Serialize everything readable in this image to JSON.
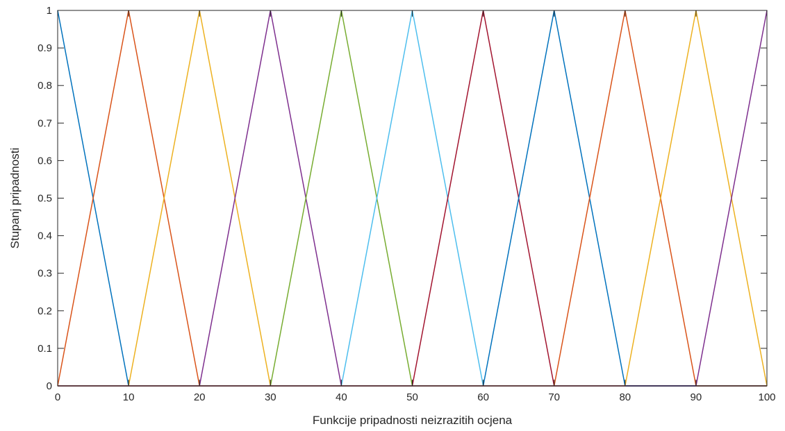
{
  "chart_data": {
    "type": "line",
    "title": "",
    "xlabel": "Funkcije pripadnosti neizrazitih ocjena",
    "ylabel": "Stupanj pripadnosti",
    "xlim": [
      0,
      100
    ],
    "ylim": [
      0,
      1
    ],
    "xticks": [
      0,
      10,
      20,
      30,
      40,
      50,
      60,
      70,
      80,
      90,
      100
    ],
    "yticks": [
      0,
      0.1,
      0.2,
      0.3,
      0.4,
      0.5,
      0.6,
      0.7,
      0.8,
      0.9,
      1
    ],
    "xtick_labels": [
      "0",
      "10",
      "20",
      "30",
      "40",
      "50",
      "60",
      "70",
      "80",
      "90",
      "100"
    ],
    "ytick_labels": [
      "0",
      "0.1",
      "0.2",
      "0.3",
      "0.4",
      "0.5",
      "0.6",
      "0.7",
      "0.8",
      "0.9",
      "1"
    ],
    "grid": false,
    "legend": "none",
    "series": [
      {
        "color": "#0072BD",
        "x": [
          0,
          10,
          100
        ],
        "y": [
          1,
          0,
          0
        ]
      },
      {
        "color": "#D95319",
        "x": [
          0,
          10,
          20,
          100
        ],
        "y": [
          0,
          1,
          0,
          0
        ]
      },
      {
        "color": "#EDB120",
        "x": [
          0,
          10,
          20,
          30,
          100
        ],
        "y": [
          0,
          0,
          1,
          0,
          0
        ]
      },
      {
        "color": "#7E2F8E",
        "x": [
          0,
          20,
          30,
          40,
          100
        ],
        "y": [
          0,
          0,
          1,
          0,
          0
        ]
      },
      {
        "color": "#77AC30",
        "x": [
          0,
          30,
          40,
          50,
          100
        ],
        "y": [
          0,
          0,
          1,
          0,
          0
        ]
      },
      {
        "color": "#4DBEEE",
        "x": [
          0,
          40,
          50,
          60,
          100
        ],
        "y": [
          0,
          0,
          1,
          0,
          0
        ]
      },
      {
        "color": "#A2142F",
        "x": [
          0,
          50,
          60,
          70,
          100
        ],
        "y": [
          0,
          0,
          1,
          0,
          0
        ]
      },
      {
        "color": "#0072BD",
        "x": [
          0,
          60,
          70,
          80,
          100
        ],
        "y": [
          0,
          0,
          1,
          0,
          0
        ]
      },
      {
        "color": "#D95319",
        "x": [
          0,
          70,
          80,
          90,
          100
        ],
        "y": [
          0,
          0,
          1,
          0,
          0
        ]
      },
      {
        "color": "#EDB120",
        "x": [
          0,
          80,
          90,
          100
        ],
        "y": [
          0,
          0,
          1,
          0
        ]
      },
      {
        "color": "#7E2F8E",
        "x": [
          0,
          90,
          100
        ],
        "y": [
          0,
          0,
          1
        ]
      }
    ]
  }
}
